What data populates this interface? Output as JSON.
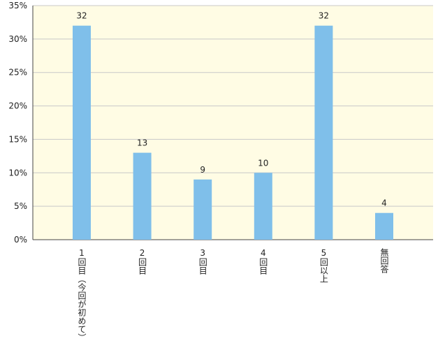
{
  "chart_data": {
    "type": "bar",
    "categories": [
      "1回目（今回が初めて）",
      "2回目",
      "3回目",
      "4回目",
      "5回以上",
      "無回答"
    ],
    "values": [
      32,
      13,
      9,
      10,
      32,
      4
    ],
    "color": "#7fbfea",
    "ylim": [
      0,
      35
    ],
    "yticks": [
      {
        "value": 0,
        "label": "0%"
      },
      {
        "value": 5,
        "label": "5%"
      },
      {
        "value": 10,
        "label": "10%"
      },
      {
        "value": 15,
        "label": "15%"
      },
      {
        "value": 20,
        "label": "20%"
      },
      {
        "value": 25,
        "label": "25%"
      },
      {
        "value": 30,
        "label": "30%"
      },
      {
        "value": 35,
        "label": "35%"
      }
    ],
    "grid": true
  }
}
